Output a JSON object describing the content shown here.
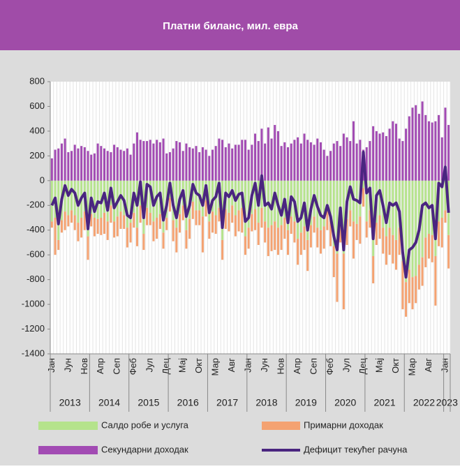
{
  "chart_data": {
    "type": "bar-line",
    "title": "Платни биланс, мил. евра",
    "categories": [
      "Јан",
      null,
      null,
      null,
      null,
      "Јун",
      null,
      null,
      null,
      null,
      "Нов",
      null,
      null,
      null,
      null,
      "Апр",
      null,
      null,
      null,
      null,
      "Сеп",
      null,
      null,
      null,
      null,
      "Феб",
      null,
      null,
      null,
      null,
      "Јул",
      null,
      null,
      null,
      null,
      "Дец",
      null,
      null,
      null,
      null,
      "Мај",
      null,
      null,
      null,
      null,
      "Окт",
      null,
      null,
      null,
      null,
      "Мар",
      null,
      null,
      null,
      null,
      "Авг",
      null,
      null,
      null,
      null,
      "Јан",
      null,
      null,
      null,
      null,
      "Јун",
      null,
      null,
      null,
      null,
      "Нов",
      null,
      null,
      null,
      null,
      "Апр",
      null,
      null,
      null,
      null,
      "Сеп",
      null,
      null,
      null,
      null,
      "Феб",
      null,
      null,
      null,
      null,
      "Јул",
      null,
      null,
      null,
      null,
      "Дец",
      null,
      null,
      null,
      null,
      "Мај",
      null,
      null,
      null,
      null,
      "Окт",
      null,
      null,
      null,
      null,
      "Мар",
      null,
      null,
      null,
      null,
      "Авг",
      null,
      null,
      null,
      null,
      "Јан",
      null
    ],
    "years": [
      "2013",
      "2014",
      "2015",
      "2016",
      "2017",
      "2018",
      "2019",
      "2020",
      "2021",
      "2022",
      "2023"
    ],
    "ylim": [
      -1400,
      800
    ],
    "yticks": [
      -1400,
      -1200,
      -1000,
      -800,
      -600,
      -400,
      -200,
      0,
      200,
      400,
      600,
      800
    ],
    "grid": false,
    "series": [
      {
        "name": "Салдо робе и услуга",
        "color": "#b5e38c",
        "kind": "bar",
        "values": [
          -330,
          -300,
          -480,
          -320,
          -250,
          -280,
          -240,
          -280,
          -340,
          -300,
          -250,
          -450,
          -270,
          -300,
          -310,
          -300,
          -260,
          -330,
          -200,
          -330,
          -290,
          -250,
          -280,
          -380,
          -340,
          -260,
          -380,
          -200,
          -430,
          -220,
          -260,
          -330,
          -300,
          -270,
          -420,
          -300,
          -140,
          -320,
          -380,
          -270,
          -200,
          -400,
          -310,
          -170,
          -240,
          -240,
          -290,
          -160,
          -330,
          -250,
          -280,
          -220,
          -480,
          -230,
          -260,
          -200,
          -280,
          -240,
          -220,
          -450,
          -380,
          -270,
          -230,
          -340,
          -220,
          -330,
          -380,
          -360,
          -330,
          -380,
          -360,
          -300,
          -400,
          -290,
          -330,
          -470,
          -420,
          -370,
          -480,
          -360,
          -290,
          -380,
          -400,
          -370,
          -240,
          -320,
          -530,
          -590,
          -300,
          -590,
          -310,
          -240,
          -330,
          -350,
          -290,
          -60,
          -330,
          -240,
          -610,
          -340,
          -280,
          -380,
          -450,
          -380,
          -440,
          -480,
          -380,
          -650,
          -820,
          -720,
          -780,
          -770,
          -680,
          -620,
          -460,
          -430,
          -440,
          -610,
          -330,
          -300,
          -240,
          -440
        ]
      },
      {
        "name": "Примарни доходак",
        "color": "#f4a271",
        "kind": "bar",
        "values": [
          -50,
          -300,
          -80,
          -100,
          -150,
          -90,
          -100,
          -120,
          -150,
          -160,
          -150,
          -190,
          -100,
          -150,
          -120,
          -140,
          -170,
          -150,
          -140,
          -130,
          -160,
          -140,
          -110,
          -160,
          -160,
          -120,
          -150,
          -140,
          -130,
          -140,
          -100,
          -160,
          -170,
          -120,
          -130,
          -100,
          -110,
          -170,
          -200,
          -150,
          -120,
          -150,
          -160,
          -140,
          -120,
          -120,
          -290,
          -130,
          -140,
          -170,
          -150,
          -110,
          -160,
          -160,
          -150,
          -140,
          -170,
          -170,
          -200,
          -150,
          -170,
          -140,
          -170,
          -180,
          -160,
          -170,
          -230,
          -210,
          -230,
          -220,
          -200,
          -170,
          -200,
          -140,
          -170,
          -210,
          -180,
          -190,
          -250,
          -180,
          -130,
          -160,
          -190,
          -180,
          -160,
          -210,
          -250,
          -390,
          -200,
          -450,
          -210,
          -130,
          -300,
          -130,
          -220,
          -150,
          -130,
          -140,
          -220,
          -180,
          -190,
          -210,
          -230,
          -220,
          -230,
          -240,
          -220,
          -390,
          -280,
          -270,
          -260,
          -220,
          -200,
          -230,
          -240,
          -200,
          -220,
          -400,
          -200,
          -240,
          -100,
          -270
        ]
      },
      {
        "name": "Секундарни доходак",
        "color": "#a24bb3",
        "kind": "bar",
        "values": [
          180,
          250,
          260,
          300,
          340,
          230,
          240,
          290,
          260,
          280,
          270,
          240,
          210,
          220,
          300,
          280,
          260,
          240,
          230,
          290,
          270,
          250,
          240,
          260,
          210,
          300,
          390,
          330,
          320,
          320,
          330,
          300,
          330,
          310,
          340,
          220,
          230,
          260,
          320,
          310,
          240,
          300,
          270,
          260,
          280,
          230,
          270,
          250,
          200,
          250,
          280,
          340,
          330,
          270,
          300,
          260,
          290,
          290,
          330,
          330,
          250,
          290,
          380,
          320,
          420,
          300,
          430,
          340,
          450,
          400,
          280,
          310,
          270,
          300,
          330,
          350,
          300,
          380,
          330,
          310,
          290,
          340,
          310,
          250,
          200,
          240,
          300,
          320,
          280,
          380,
          350,
          320,
          480,
          300,
          330,
          250,
          270,
          320,
          440,
          400,
          380,
          390,
          360,
          420,
          480,
          460,
          340,
          320,
          420,
          520,
          590,
          610,
          540,
          640,
          530,
          480,
          470,
          480,
          530,
          350,
          590,
          450
        ]
      },
      {
        "name": "Дефицит текућег рачуна",
        "color": "#4a2580",
        "kind": "line",
        "values": [
          -200,
          -140,
          -350,
          -150,
          -40,
          -120,
          -70,
          -100,
          -200,
          -140,
          -100,
          -390,
          -140,
          -250,
          -170,
          -180,
          -100,
          -240,
          -60,
          -220,
          -170,
          -120,
          -160,
          -280,
          -300,
          -100,
          -200,
          -10,
          -300,
          -30,
          -50,
          -200,
          -130,
          -100,
          -320,
          -200,
          -20,
          -200,
          -300,
          -150,
          -80,
          -290,
          -200,
          -30,
          -100,
          -120,
          -200,
          -40,
          -260,
          -160,
          -130,
          -20,
          -380,
          -100,
          -130,
          -80,
          -160,
          -110,
          -100,
          -330,
          -300,
          -120,
          -20,
          -200,
          40,
          -200,
          -180,
          -230,
          -100,
          -200,
          -280,
          -150,
          -340,
          -130,
          -170,
          -330,
          -300,
          -180,
          -400,
          -230,
          -120,
          -210,
          -280,
          -300,
          -200,
          -290,
          -450,
          -560,
          -220,
          -560,
          -170,
          -50,
          -150,
          -160,
          -180,
          230,
          -100,
          -60,
          -470,
          -120,
          -80,
          -200,
          -340,
          -180,
          -200,
          -180,
          -250,
          -580,
          -780,
          -560,
          -540,
          -500,
          -400,
          -200,
          -180,
          -220,
          -200,
          -470,
          -20,
          -50,
          110,
          -260
        ]
      }
    ]
  }
}
